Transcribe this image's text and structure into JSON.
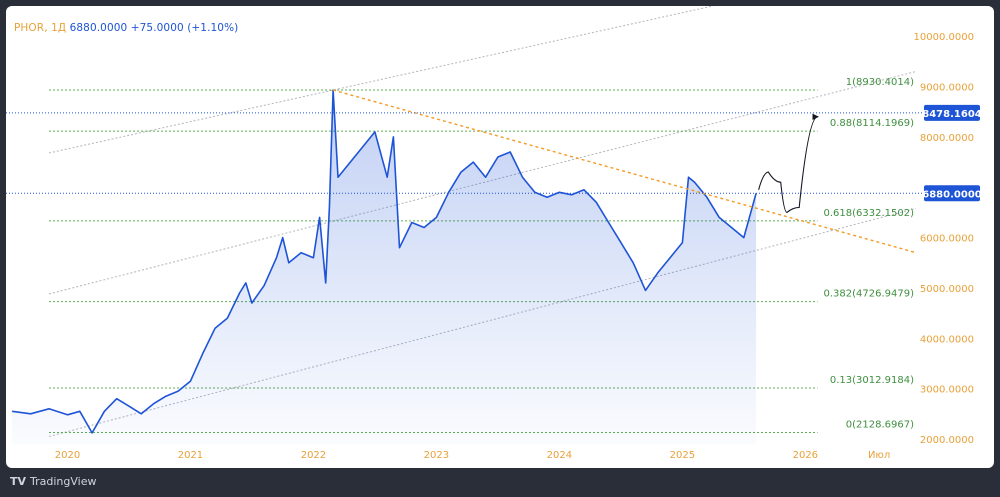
{
  "legend": {
    "symbol": "PHOR, 1Д",
    "close": "6880.0000",
    "change": "+75.0000 (+1.10%)"
  },
  "footer": {
    "brand": "TradingView"
  },
  "colors": {
    "line": "#1e54d6",
    "fib": "#5daa4f",
    "trend": "#f59a23",
    "channel": "#b2b5be",
    "axis": "#e8a13a",
    "badge": "#1e54d6"
  },
  "chart_data": {
    "type": "line",
    "x_ticks": [
      "2020",
      "2021",
      "2022",
      "2023",
      "2024",
      "2025",
      "2026",
      "Июл"
    ],
    "y_ticks": [
      "2000.0000",
      "3000.0000",
      "4000.0000",
      "5000.0000",
      "6000.0000",
      "8000.0000",
      "9000.0000",
      "10000.0000"
    ],
    "ylim": [
      1900,
      10600
    ],
    "xlim": [
      2019.5,
      2026.9
    ],
    "series": [
      {
        "points": [
          [
            2019.55,
            2550
          ],
          [
            2019.7,
            2500
          ],
          [
            2019.85,
            2600
          ],
          [
            2020.0,
            2480
          ],
          [
            2020.1,
            2550
          ],
          [
            2020.2,
            2120
          ],
          [
            2020.3,
            2550
          ],
          [
            2020.4,
            2800
          ],
          [
            2020.5,
            2650
          ],
          [
            2020.6,
            2500
          ],
          [
            2020.7,
            2700
          ],
          [
            2020.8,
            2850
          ],
          [
            2020.9,
            2950
          ],
          [
            2021.0,
            3150
          ],
          [
            2021.1,
            3700
          ],
          [
            2021.2,
            4200
          ],
          [
            2021.3,
            4400
          ],
          [
            2021.4,
            4900
          ],
          [
            2021.45,
            5100
          ],
          [
            2021.5,
            4700
          ],
          [
            2021.6,
            5050
          ],
          [
            2021.7,
            5600
          ],
          [
            2021.75,
            6000
          ],
          [
            2021.8,
            5500
          ],
          [
            2021.9,
            5700
          ],
          [
            2022.0,
            5600
          ],
          [
            2022.05,
            6400
          ],
          [
            2022.1,
            5100
          ],
          [
            2022.13,
            6600
          ],
          [
            2022.16,
            8930
          ],
          [
            2022.2,
            7200
          ],
          [
            2022.3,
            7500
          ],
          [
            2022.4,
            7800
          ],
          [
            2022.5,
            8100
          ],
          [
            2022.6,
            7200
          ],
          [
            2022.65,
            8000
          ],
          [
            2022.7,
            5800
          ],
          [
            2022.8,
            6300
          ],
          [
            2022.9,
            6200
          ],
          [
            2023.0,
            6400
          ],
          [
            2023.1,
            6900
          ],
          [
            2023.2,
            7300
          ],
          [
            2023.3,
            7500
          ],
          [
            2023.4,
            7200
          ],
          [
            2023.5,
            7600
          ],
          [
            2023.6,
            7700
          ],
          [
            2023.7,
            7200
          ],
          [
            2023.8,
            6900
          ],
          [
            2023.9,
            6800
          ],
          [
            2024.0,
            6900
          ],
          [
            2024.1,
            6850
          ],
          [
            2024.2,
            6950
          ],
          [
            2024.3,
            6700
          ],
          [
            2024.4,
            6300
          ],
          [
            2024.5,
            5900
          ],
          [
            2024.6,
            5500
          ],
          [
            2024.7,
            4950
          ],
          [
            2024.8,
            5300
          ],
          [
            2024.9,
            5600
          ],
          [
            2025.0,
            5900
          ],
          [
            2025.05,
            7200
          ],
          [
            2025.1,
            7100
          ],
          [
            2025.2,
            6800
          ],
          [
            2025.3,
            6400
          ],
          [
            2025.4,
            6200
          ],
          [
            2025.5,
            6000
          ],
          [
            2025.6,
            6880
          ]
        ]
      }
    ],
    "fib_levels": [
      {
        "label": "1(8930.4014)",
        "value": 8930.4014
      },
      {
        "label": "0.88(8114.1969)",
        "value": 8114.1969
      },
      {
        "label": "0.618(6332.1502)",
        "value": 6332.1502
      },
      {
        "label": "0.382(4726.9479)",
        "value": 4726.9479
      },
      {
        "label": "0.13(3012.9184)",
        "value": 3012.9184
      },
      {
        "label": "0(2128.6967)",
        "value": 2128.6967
      }
    ],
    "price_badges": [
      {
        "label": "8478.1604",
        "value": 8478.1604
      },
      {
        "label": "6880.0000",
        "value": 6880.0
      }
    ],
    "trend_line": {
      "x1": 2022.16,
      "y1": 8930.4014,
      "x2": 2026.9,
      "y2": 5700
    },
    "channel_lines": [
      {
        "x1": 2019.85,
        "y1": 2050,
        "x2": 2026.9,
        "y2": 6580
      },
      {
        "x1": 2019.85,
        "y1": 4880,
        "x2": 2026.9,
        "y2": 9300
      },
      {
        "x1": 2019.85,
        "y1": 7680,
        "x2": 2025.8,
        "y2": 10900
      }
    ],
    "projection": [
      [
        2025.62,
        6950
      ],
      [
        2025.7,
        7300
      ],
      [
        2025.8,
        7100
      ],
      [
        2025.85,
        6500
      ],
      [
        2025.95,
        6600
      ],
      [
        2026.1,
        8400
      ]
    ]
  }
}
